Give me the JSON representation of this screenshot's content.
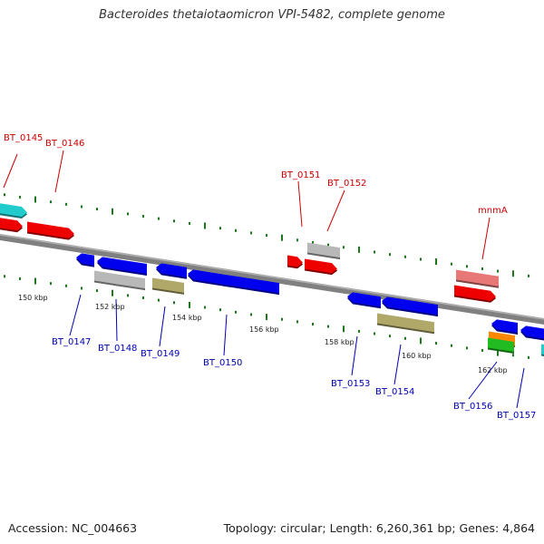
{
  "header": {
    "title": "Bacteroides thetaiotaomicron VPI-5482, complete genome"
  },
  "footer": {
    "accession": "Accession: NC_004663",
    "info": "Topology: circular; Length: 6,260,361 bp; Genes: 4,864"
  },
  "colors": {
    "backbone": "#808080",
    "tick": "#1a7a1a",
    "forward_label": "#cc0000",
    "reverse_label": "#0000b0",
    "blue_gene": "#0000ee",
    "red_gene": "#ee0000",
    "grey_gene": "#b8b8b8",
    "khaki_gene": "#b0a868",
    "cyan_gene": "#22cccc",
    "pink_gene": "#e87878"
  },
  "kbp_labels": [
    "150 kbp",
    "152 kbp",
    "154 kbp",
    "156 kbp",
    "158 kbp",
    "160 kbp",
    "162 kbp"
  ],
  "forward_labels": [
    "BT_0145",
    "BT_0146",
    "BT_0151",
    "BT_0152",
    "mnmA"
  ],
  "reverse_labels": [
    "BT_0147",
    "BT_0148",
    "BT_0149",
    "BT_0150",
    "BT_0153",
    "BT_0154",
    "BT_0156",
    "BT_0157"
  ]
}
